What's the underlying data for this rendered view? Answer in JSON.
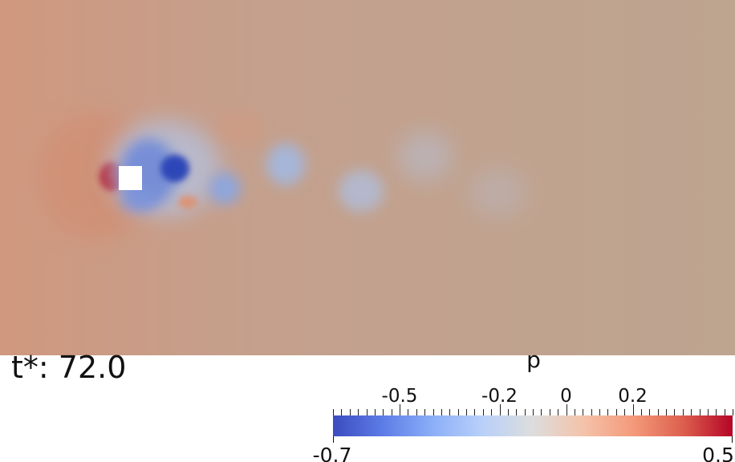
{
  "time_annotation": "t*: 72.0",
  "colorbar": {
    "title": "p",
    "min_label": "-0.7",
    "max_label": "0.5",
    "range": [
      -0.7,
      0.5
    ],
    "ticks": [
      {
        "value": -0.5,
        "label": "-0.5"
      },
      {
        "value": -0.2,
        "label": "-0.2"
      },
      {
        "value": 0,
        "label": "0"
      },
      {
        "value": 0.2,
        "label": "0.2"
      }
    ],
    "colormap": "cool-to-warm",
    "colors": {
      "low": "#3b4cc0",
      "mid": "#dddddd",
      "high": "#b40426"
    }
  },
  "field": {
    "background_color": "#bda290",
    "obstacle_color": "#ffffff"
  }
}
